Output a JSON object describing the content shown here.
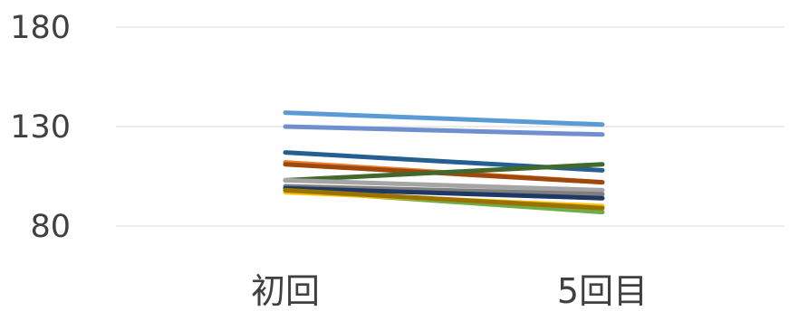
{
  "chart_data": {
    "type": "line",
    "categories": [
      "初回",
      "5回目"
    ],
    "yticks": [
      80,
      130,
      180
    ],
    "ylim": [
      80,
      180
    ],
    "grid": true,
    "legend": "none",
    "series": [
      {
        "values": [
          137,
          131
        ],
        "color": "#5b9bd5"
      },
      {
        "values": [
          130,
          126
        ],
        "color": "#6f8fcf"
      },
      {
        "values": [
          117,
          108
        ],
        "color": "#255e91"
      },
      {
        "values": [
          112,
          102
        ],
        "color": "#ed7d31"
      },
      {
        "values": [
          111,
          102
        ],
        "color": "#9e480e"
      },
      {
        "values": [
          103,
          111
        ],
        "color": "#43682b"
      },
      {
        "values": [
          103,
          98
        ],
        "color": "#a5a5a5"
      },
      {
        "values": [
          100,
          96
        ],
        "color": "#7f7f7f"
      },
      {
        "values": [
          99,
          94
        ],
        "color": "#1f3864"
      },
      {
        "values": [
          98,
          87
        ],
        "color": "#70ad47"
      },
      {
        "values": [
          97,
          90
        ],
        "color": "#ffc000"
      },
      {
        "values": [
          98,
          89
        ],
        "color": "#997300"
      }
    ]
  }
}
